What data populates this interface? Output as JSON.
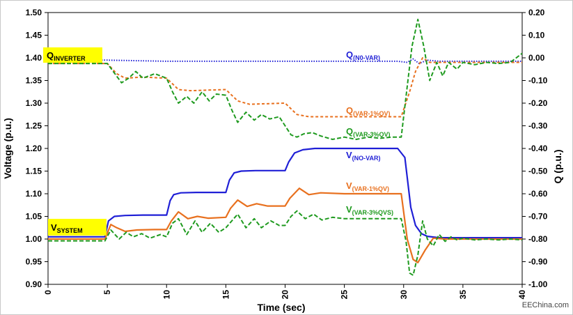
{
  "chart_data": {
    "type": "line",
    "xlabel": "Time (sec)",
    "ylabel": "Voltage (p.u.)",
    "y2label": "Q (p.u.)",
    "xlim": [
      0,
      40
    ],
    "ylim": [
      0.9,
      1.5
    ],
    "y2lim": [
      -1.0,
      0.2
    ],
    "grid": false,
    "x_ticks": [
      "0",
      "5",
      "10",
      "15",
      "20",
      "25",
      "30",
      "35",
      "40"
    ],
    "y_ticks": [
      "0.90",
      "0.95",
      "1.00",
      "1.05",
      "1.10",
      "1.15",
      "1.20",
      "1.25",
      "1.30",
      "1.35",
      "1.40",
      "1.45",
      "1.50"
    ],
    "y2_ticks": [
      "-1.00",
      "-0.90",
      "-0.80",
      "-0.70",
      "-0.60",
      "-0.50",
      "-0.40",
      "-0.30",
      "-0.20",
      "-0.10",
      "0.00",
      "0.10",
      "0.20"
    ],
    "colors": {
      "blue": "#1f1fd6",
      "orange": "#e8701e",
      "green": "#1e9a1e",
      "highlight": "#ffff00"
    },
    "annotations": {
      "q_inverter": {
        "main": "Q",
        "sub": "INVERTER"
      },
      "v_system": {
        "main": "V",
        "sub": "SYSTEM"
      },
      "q_novar": {
        "main": "Q",
        "sub": "(N0-VAR)"
      },
      "q_var1": {
        "main": "Q",
        "sub": "(VAR-1%QV)"
      },
      "q_var3": {
        "main": "Q",
        "sub": "(VAR-3%QV)"
      },
      "v_novar": {
        "main": "V",
        "sub": "(NO-VAR)"
      },
      "v_var1": {
        "main": "V",
        "sub": "(VAR-1%QV)"
      },
      "v_var3": {
        "main": "V",
        "sub": "(VAR-3%QVS)"
      }
    },
    "watermark": "EEChina.com",
    "series": [
      {
        "axis": "right",
        "color": "#1f1fd6",
        "dash": "dot",
        "x": [
          0,
          5,
          10,
          15,
          20,
          25,
          29.5,
          30.3,
          30.8,
          31.3,
          32,
          33,
          35,
          40
        ],
        "y": [
          -0.01,
          -0.01,
          -0.015,
          -0.015,
          -0.015,
          -0.015,
          -0.015,
          -0.02,
          -0.005,
          -0.025,
          -0.01,
          -0.015,
          -0.015,
          -0.015
        ]
      },
      {
        "axis": "right",
        "color": "#e8701e",
        "dash": "short",
        "x": [
          0,
          5,
          5.8,
          6.5,
          8,
          10,
          11,
          12,
          15,
          16,
          17,
          20,
          21,
          22,
          25,
          29.8,
          30.5,
          31,
          31.6,
          32.2,
          33,
          35,
          40
        ],
        "y": [
          -0.025,
          -0.025,
          -0.07,
          -0.09,
          -0.085,
          -0.09,
          -0.14,
          -0.145,
          -0.14,
          -0.19,
          -0.205,
          -0.2,
          -0.25,
          -0.26,
          -0.26,
          -0.26,
          -0.15,
          -0.06,
          0.0,
          -0.02,
          -0.02,
          -0.02,
          -0.02
        ]
      },
      {
        "axis": "right",
        "color": "#1e9a1e",
        "dash": "dash",
        "x": [
          0,
          5,
          5.5,
          6.2,
          6.8,
          7.4,
          8,
          9,
          10,
          10.5,
          11,
          11.7,
          12.3,
          13,
          13.6,
          14.2,
          15,
          15.5,
          16,
          16.7,
          17.4,
          18,
          18.7,
          19.5,
          20,
          20.5,
          21,
          21.6,
          22.3,
          23,
          24,
          25,
          26,
          27,
          28,
          29,
          29.8,
          30.2,
          30.7,
          31.2,
          31.7,
          32.2,
          32.8,
          33.3,
          33.8,
          34.5,
          35,
          36,
          37,
          38,
          39,
          40
        ],
        "y": [
          -0.025,
          -0.025,
          -0.06,
          -0.11,
          -0.09,
          -0.06,
          -0.09,
          -0.07,
          -0.09,
          -0.15,
          -0.2,
          -0.17,
          -0.2,
          -0.15,
          -0.19,
          -0.16,
          -0.165,
          -0.23,
          -0.285,
          -0.24,
          -0.275,
          -0.25,
          -0.27,
          -0.26,
          -0.3,
          -0.34,
          -0.35,
          -0.335,
          -0.33,
          -0.345,
          -0.36,
          -0.35,
          -0.36,
          -0.35,
          -0.355,
          -0.35,
          -0.35,
          -0.17,
          0.05,
          0.17,
          0.05,
          -0.1,
          -0.02,
          -0.08,
          -0.02,
          -0.05,
          -0.02,
          -0.03,
          -0.02,
          -0.025,
          -0.02,
          0.02
        ]
      },
      {
        "axis": "left",
        "color": "#1f1fd6",
        "dash": "solid",
        "x": [
          0,
          4.8,
          5.1,
          5.6,
          6.5,
          8,
          10,
          10.3,
          10.6,
          11.2,
          12.5,
          15,
          15.3,
          15.7,
          16.3,
          17.5,
          20,
          20.3,
          20.8,
          21.5,
          22.5,
          25,
          29.5,
          30.1,
          30.6,
          31,
          31.5,
          32,
          33,
          35,
          40
        ],
        "y": [
          1.005,
          1.005,
          1.04,
          1.05,
          1.052,
          1.053,
          1.053,
          1.085,
          1.098,
          1.102,
          1.103,
          1.103,
          1.13,
          1.146,
          1.15,
          1.151,
          1.151,
          1.17,
          1.19,
          1.197,
          1.2,
          1.2,
          1.2,
          1.18,
          1.07,
          1.03,
          1.012,
          1.006,
          1.003,
          1.003,
          1.003
        ]
      },
      {
        "axis": "left",
        "color": "#e8701e",
        "dash": "solid",
        "x": [
          0,
          4.8,
          5.3,
          5.8,
          6.5,
          7.5,
          9,
          10,
          10.4,
          11,
          11.8,
          12.6,
          13.5,
          15,
          15.4,
          16,
          16.8,
          17.6,
          18.5,
          20,
          20.4,
          21.2,
          22,
          23,
          25,
          29.8,
          30.3,
          30.8,
          31.2,
          31.8,
          32.5,
          33.5,
          35,
          40
        ],
        "y": [
          1.0,
          1.0,
          1.032,
          1.025,
          1.017,
          1.02,
          1.021,
          1.021,
          1.04,
          1.06,
          1.045,
          1.05,
          1.046,
          1.048,
          1.068,
          1.086,
          1.072,
          1.078,
          1.073,
          1.073,
          1.09,
          1.112,
          1.098,
          1.102,
          1.1,
          1.1,
          1.0,
          0.955,
          0.948,
          0.975,
          1.002,
          1.0,
          1.0,
          1.0
        ]
      },
      {
        "axis": "left",
        "color": "#1e9a1e",
        "dash": "dash",
        "x": [
          0,
          4.8,
          5.3,
          6,
          6.6,
          7.2,
          7.9,
          8.6,
          9.5,
          10,
          10.5,
          11,
          11.7,
          12.4,
          13,
          13.7,
          14.4,
          15,
          15.5,
          16,
          16.7,
          17.4,
          18,
          18.8,
          19.5,
          20,
          20.5,
          21,
          21.7,
          22.4,
          23.1,
          24,
          25,
          26,
          27,
          28,
          29,
          29.8,
          30.2,
          30.5,
          30.8,
          31.2,
          31.6,
          32,
          32.5,
          33,
          33.5,
          34,
          34.5,
          35,
          36,
          37,
          38,
          39,
          40
        ],
        "y": [
          0.996,
          0.996,
          1.02,
          1.0,
          1.015,
          1.005,
          1.012,
          1.002,
          1.01,
          1.005,
          1.035,
          1.045,
          1.01,
          1.04,
          1.015,
          1.035,
          1.015,
          1.025,
          1.04,
          1.055,
          1.025,
          1.045,
          1.025,
          1.04,
          1.03,
          1.03,
          1.05,
          1.062,
          1.045,
          1.055,
          1.042,
          1.048,
          1.045,
          1.045,
          1.045,
          1.045,
          1.045,
          1.045,
          0.995,
          0.925,
          0.92,
          0.965,
          1.04,
          1.0,
          0.985,
          1.01,
          0.995,
          1.005,
          0.998,
          1.002,
          0.998,
          1.0,
          0.998,
          1.0,
          0.998
        ]
      }
    ]
  }
}
